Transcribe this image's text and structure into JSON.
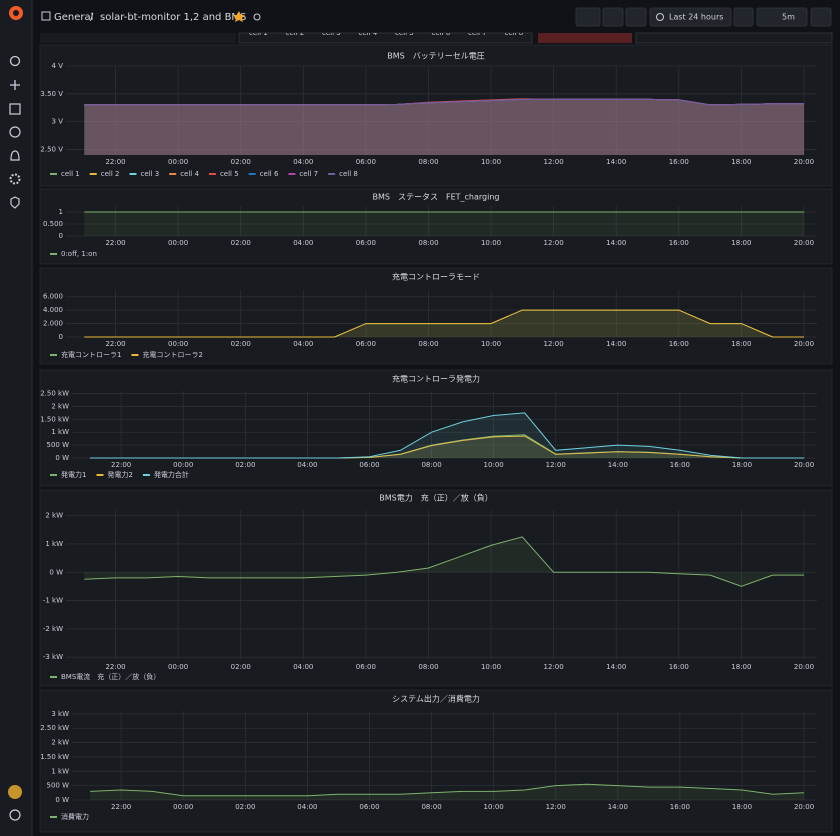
{
  "header": {
    "breadcrumb_root": "General",
    "separator": "/",
    "dashboard_title": "solar-bt-monitor 1,2 and BMS",
    "time_range": "Last 24 hours",
    "refresh": "5m"
  },
  "top_strip": [
    "cell 1",
    "cell 2",
    "cell 3",
    "cell 4",
    "cell 5",
    "cell 6",
    "cell 7",
    "cell 8"
  ],
  "chart_data": [
    {
      "type": "line",
      "title": "BMS　バッテリーセル電圧",
      "x": [
        "21:00",
        "22:00",
        "23:00",
        "00:00",
        "01:00",
        "02:00",
        "03:00",
        "04:00",
        "05:00",
        "06:00",
        "07:00",
        "08:00",
        "09:00",
        "10:00",
        "11:00",
        "12:00",
        "13:00",
        "14:00",
        "15:00",
        "16:00",
        "17:00",
        "18:00",
        "19:00",
        "20:00"
      ],
      "xticks": [
        "22:00",
        "00:00",
        "02:00",
        "04:00",
        "06:00",
        "08:00",
        "10:00",
        "12:00",
        "14:00",
        "16:00",
        "18:00",
        "20:00"
      ],
      "ylim": [
        2.4,
        4
      ],
      "yticks": [
        {
          "value": 2.5,
          "label": "2.50 V"
        },
        {
          "value": 3,
          "label": "3 V"
        },
        {
          "value": 3.5,
          "label": "3.50 V"
        },
        {
          "value": 4,
          "label": "4 V"
        }
      ],
      "grid": true,
      "series": [
        {
          "name": "cell 1",
          "color": "#7EB26D",
          "values": [
            3.3,
            3.3,
            3.3,
            3.3,
            3.3,
            3.3,
            3.3,
            3.3,
            3.3,
            3.3,
            3.31,
            3.34,
            3.36,
            3.38,
            3.4,
            3.4,
            3.4,
            3.4,
            3.4,
            3.39,
            3.3,
            3.31,
            3.32,
            3.32
          ]
        },
        {
          "name": "cell 2",
          "color": "#EAB839",
          "values": [
            3.3,
            3.3,
            3.3,
            3.3,
            3.3,
            3.3,
            3.3,
            3.3,
            3.3,
            3.3,
            3.31,
            3.34,
            3.36,
            3.38,
            3.4,
            3.4,
            3.4,
            3.4,
            3.4,
            3.39,
            3.3,
            3.31,
            3.32,
            3.32
          ]
        },
        {
          "name": "cell 3",
          "color": "#6ED0E0",
          "values": [
            3.3,
            3.3,
            3.3,
            3.3,
            3.3,
            3.3,
            3.3,
            3.3,
            3.3,
            3.3,
            3.31,
            3.34,
            3.36,
            3.38,
            3.4,
            3.4,
            3.4,
            3.4,
            3.4,
            3.39,
            3.3,
            3.31,
            3.32,
            3.32
          ]
        },
        {
          "name": "cell 4",
          "color": "#EF843C",
          "values": [
            3.3,
            3.3,
            3.3,
            3.3,
            3.3,
            3.3,
            3.3,
            3.3,
            3.3,
            3.3,
            3.31,
            3.34,
            3.36,
            3.38,
            3.4,
            3.4,
            3.4,
            3.4,
            3.4,
            3.39,
            3.3,
            3.31,
            3.32,
            3.32
          ]
        },
        {
          "name": "cell 5",
          "color": "#E24D42",
          "values": [
            3.3,
            3.3,
            3.3,
            3.3,
            3.3,
            3.3,
            3.3,
            3.3,
            3.3,
            3.3,
            3.31,
            3.35,
            3.37,
            3.39,
            3.41,
            3.4,
            3.4,
            3.4,
            3.4,
            3.39,
            3.3,
            3.31,
            3.32,
            3.32
          ]
        },
        {
          "name": "cell 6",
          "color": "#1F78C1",
          "values": [
            3.3,
            3.3,
            3.3,
            3.3,
            3.3,
            3.3,
            3.3,
            3.3,
            3.3,
            3.3,
            3.31,
            3.34,
            3.36,
            3.38,
            3.4,
            3.4,
            3.4,
            3.4,
            3.4,
            3.39,
            3.3,
            3.31,
            3.32,
            3.32
          ]
        },
        {
          "name": "cell 7",
          "color": "#BA43A9",
          "values": [
            3.3,
            3.3,
            3.3,
            3.3,
            3.3,
            3.3,
            3.3,
            3.3,
            3.3,
            3.3,
            3.31,
            3.34,
            3.36,
            3.38,
            3.4,
            3.4,
            3.4,
            3.4,
            3.4,
            3.39,
            3.3,
            3.31,
            3.32,
            3.32
          ]
        },
        {
          "name": "cell 8",
          "color": "#705DA0",
          "values": [
            3.3,
            3.3,
            3.3,
            3.3,
            3.3,
            3.3,
            3.3,
            3.3,
            3.3,
            3.3,
            3.31,
            3.34,
            3.36,
            3.38,
            3.4,
            3.4,
            3.4,
            3.4,
            3.4,
            3.39,
            3.3,
            3.31,
            3.32,
            3.32
          ]
        }
      ]
    },
    {
      "type": "line",
      "title": "BMS　ステータス　FET_charging",
      "x": [
        "21:00",
        "22:00",
        "23:00",
        "00:00",
        "01:00",
        "02:00",
        "03:00",
        "04:00",
        "05:00",
        "06:00",
        "07:00",
        "08:00",
        "09:00",
        "10:00",
        "11:00",
        "12:00",
        "13:00",
        "14:00",
        "15:00",
        "16:00",
        "17:00",
        "18:00",
        "19:00",
        "20:00"
      ],
      "xticks": [
        "22:00",
        "00:00",
        "02:00",
        "04:00",
        "06:00",
        "08:00",
        "10:00",
        "12:00",
        "14:00",
        "16:00",
        "18:00",
        "20:00"
      ],
      "ylim": [
        0,
        1.25
      ],
      "yticks": [
        0,
        {
          "value": 0.5,
          "label": "0.500"
        },
        1
      ],
      "grid": true,
      "series": [
        {
          "name": "0:off, 1:on",
          "color": "#7EB26D",
          "values": [
            1,
            1,
            1,
            1,
            1,
            1,
            1,
            1,
            1,
            1,
            1,
            1,
            1,
            1,
            1,
            1,
            1,
            1,
            1,
            1,
            1,
            1,
            1,
            1
          ]
        }
      ]
    },
    {
      "type": "line",
      "title": "充電コントローラモード",
      "x": [
        "21:00",
        "22:00",
        "23:00",
        "00:00",
        "01:00",
        "02:00",
        "03:00",
        "04:00",
        "05:00",
        "06:00",
        "07:00",
        "08:00",
        "09:00",
        "10:00",
        "11:00",
        "12:00",
        "13:00",
        "14:00",
        "15:00",
        "16:00",
        "17:00",
        "18:00",
        "19:00",
        "20:00"
      ],
      "xticks": [
        "22:00",
        "00:00",
        "02:00",
        "04:00",
        "06:00",
        "08:00",
        "10:00",
        "12:00",
        "14:00",
        "16:00",
        "18:00",
        "20:00"
      ],
      "ylim": [
        0,
        7
      ],
      "yticks": [
        0,
        {
          "value": 2,
          "label": "2.000"
        },
        {
          "value": 4,
          "label": "4.000"
        },
        {
          "value": 6,
          "label": "6.000"
        }
      ],
      "grid": true,
      "series": [
        {
          "name": "充電コントローラ1",
          "color": "#7EB26D",
          "values": [
            0,
            0,
            0,
            0,
            0,
            0,
            0,
            0,
            0,
            2,
            2,
            2,
            2,
            2,
            4,
            4,
            4,
            4,
            4,
            4,
            2,
            2,
            0,
            0
          ]
        },
        {
          "name": "充電コントローラ2",
          "color": "#EAB839",
          "values": [
            0,
            0,
            0,
            0,
            0,
            0,
            0,
            0,
            0,
            2,
            2,
            2,
            2,
            2,
            4,
            4,
            4,
            4,
            4,
            4,
            2,
            2,
            0,
            0
          ]
        }
      ]
    },
    {
      "type": "line",
      "title": "充電コントローラ発電力",
      "x": [
        "21:00",
        "22:00",
        "23:00",
        "00:00",
        "01:00",
        "02:00",
        "03:00",
        "04:00",
        "05:00",
        "06:00",
        "07:00",
        "08:00",
        "09:00",
        "10:00",
        "11:00",
        "12:00",
        "13:00",
        "14:00",
        "15:00",
        "16:00",
        "17:00",
        "18:00",
        "19:00",
        "20:00"
      ],
      "xticks": [
        "22:00",
        "00:00",
        "02:00",
        "04:00",
        "06:00",
        "08:00",
        "10:00",
        "12:00",
        "14:00",
        "16:00",
        "18:00",
        "20:00"
      ],
      "ylim": [
        0,
        2600
      ],
      "yticks": [
        {
          "value": 0,
          "label": "0 W"
        },
        {
          "value": 500,
          "label": "500 W"
        },
        {
          "value": 1000,
          "label": "1 kW"
        },
        {
          "value": 1500,
          "label": "1.50 kW"
        },
        {
          "value": 2000,
          "label": "2 kW"
        },
        {
          "value": 2500,
          "label": "2.50 kW"
        }
      ],
      "grid": true,
      "series": [
        {
          "name": "発電力1",
          "color": "#7EB26D",
          "values": [
            0,
            0,
            0,
            0,
            0,
            0,
            0,
            0,
            0,
            25,
            150,
            500,
            700,
            850,
            900,
            150,
            200,
            250,
            225,
            150,
            50,
            0,
            0,
            0
          ]
        },
        {
          "name": "発電力2",
          "color": "#EAB839",
          "values": [
            0,
            0,
            0,
            0,
            0,
            0,
            0,
            0,
            0,
            25,
            140,
            480,
            680,
            820,
            850,
            140,
            190,
            240,
            215,
            140,
            45,
            0,
            0,
            0
          ]
        },
        {
          "name": "発電力合計",
          "color": "#6ED0E0",
          "values": [
            0,
            0,
            0,
            0,
            0,
            0,
            0,
            0,
            0,
            50,
            300,
            1000,
            1400,
            1650,
            1750,
            300,
            400,
            500,
            450,
            300,
            100,
            0,
            0,
            0
          ]
        }
      ]
    },
    {
      "type": "line",
      "title": "BMS電力　充（正）／放（負）",
      "x": [
        "21:00",
        "22:00",
        "23:00",
        "00:00",
        "01:00",
        "02:00",
        "03:00",
        "04:00",
        "05:00",
        "06:00",
        "07:00",
        "08:00",
        "09:00",
        "10:00",
        "11:00",
        "12:00",
        "13:00",
        "14:00",
        "15:00",
        "16:00",
        "17:00",
        "18:00",
        "19:00",
        "20:00"
      ],
      "xticks": [
        "22:00",
        "00:00",
        "02:00",
        "04:00",
        "06:00",
        "08:00",
        "10:00",
        "12:00",
        "14:00",
        "16:00",
        "18:00",
        "20:00"
      ],
      "ylim": [
        -3100,
        2200
      ],
      "yticks": [
        {
          "value": -3000,
          "label": "-3 kW"
        },
        {
          "value": -2000,
          "label": "-2 kW"
        },
        {
          "value": -1000,
          "label": "-1 kW"
        },
        {
          "value": 0,
          "label": "0 W"
        },
        {
          "value": 1000,
          "label": "1 kW"
        },
        {
          "value": 2000,
          "label": "2 kW"
        }
      ],
      "grid": true,
      "series": [
        {
          "name": "BMS電流　充（正）／放（負）",
          "color": "#7EB26D",
          "values": [
            -250,
            -200,
            -200,
            -150,
            -200,
            -200,
            -200,
            -200,
            -150,
            -100,
            0,
            150,
            550,
            950,
            1250,
            0,
            0,
            0,
            0,
            -50,
            -100,
            -500,
            -100,
            -100
          ]
        }
      ]
    },
    {
      "type": "line",
      "title": "システム出力／消費電力",
      "x": [
        "21:00",
        "22:00",
        "23:00",
        "00:00",
        "01:00",
        "02:00",
        "03:00",
        "04:00",
        "05:00",
        "06:00",
        "07:00",
        "08:00",
        "09:00",
        "10:00",
        "11:00",
        "12:00",
        "13:00",
        "14:00",
        "15:00",
        "16:00",
        "17:00",
        "18:00",
        "19:00",
        "20:00"
      ],
      "xticks": [
        "22:00",
        "00:00",
        "02:00",
        "04:00",
        "06:00",
        "08:00",
        "10:00",
        "12:00",
        "14:00",
        "16:00",
        "18:00",
        "20:00"
      ],
      "ylim": [
        0,
        3100
      ],
      "yticks": [
        {
          "value": 0,
          "label": "0 W"
        },
        {
          "value": 500,
          "label": "500 W"
        },
        {
          "value": 1000,
          "label": "1 kW"
        },
        {
          "value": 1500,
          "label": "1.50 kW"
        },
        {
          "value": 2000,
          "label": "2 kW"
        },
        {
          "value": 2500,
          "label": "2.50 kW"
        },
        {
          "value": 3000,
          "label": "3 kW"
        }
      ],
      "grid": true,
      "series": [
        {
          "name": "消費電力",
          "color": "#7EB26D",
          "values": [
            300,
            350,
            300,
            150,
            150,
            150,
            150,
            150,
            200,
            200,
            200,
            250,
            300,
            300,
            350,
            500,
            550,
            500,
            450,
            450,
            400,
            350,
            200,
            250
          ]
        }
      ]
    }
  ]
}
